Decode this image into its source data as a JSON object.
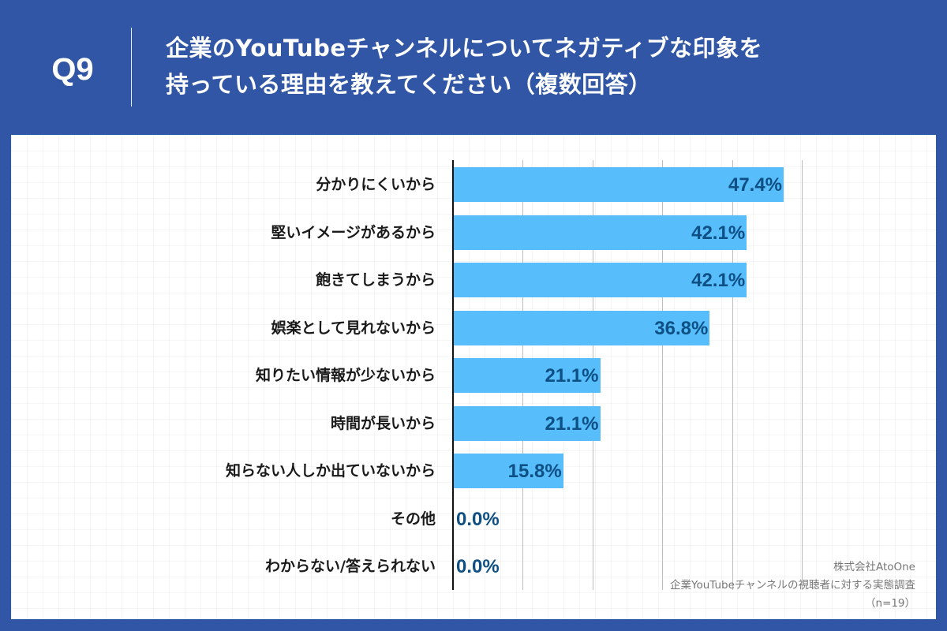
{
  "header": {
    "question_number": "Q9",
    "title_line1": "企業のYouTubeチャンネルについてネガティブな印象を",
    "title_line2": "持っている理由を教えてください（複数回答）"
  },
  "colors": {
    "header_bg": "#3156a6",
    "bar": "#57bdfb",
    "value_text": "#0e4f84",
    "label_text": "#1a1a1a"
  },
  "chart_data": {
    "type": "bar",
    "orientation": "horizontal",
    "title": "企業のYouTubeチャンネルについてネガティブな印象を持っている理由を教えてください（複数回答）",
    "xlabel": "",
    "ylabel": "",
    "unit": "%",
    "xlim": [
      0,
      50
    ],
    "grid": true,
    "gridlines_at": [
      10,
      20,
      30,
      40,
      50
    ],
    "legend": null,
    "categories": [
      "分かりにくいから",
      "堅いイメージがあるから",
      "飽きてしまうから",
      "娯楽として見れないから",
      "知りたい情報が少ないから",
      "時間が長いから",
      "知らない人しか出ていないから",
      "その他",
      "わからない/答えられない"
    ],
    "values": [
      47.4,
      42.1,
      42.1,
      36.8,
      21.1,
      21.1,
      15.8,
      0.0,
      0.0
    ],
    "value_labels": [
      "47.4%",
      "42.1%",
      "42.1%",
      "36.8%",
      "21.1%",
      "21.1%",
      "15.8%",
      "0.0%",
      "0.0%"
    ]
  },
  "source": {
    "company": "株式会社AtoOne",
    "survey": "企業YouTubeチャンネルの視聴者に対する実態調査",
    "sample": "（n=19）"
  }
}
